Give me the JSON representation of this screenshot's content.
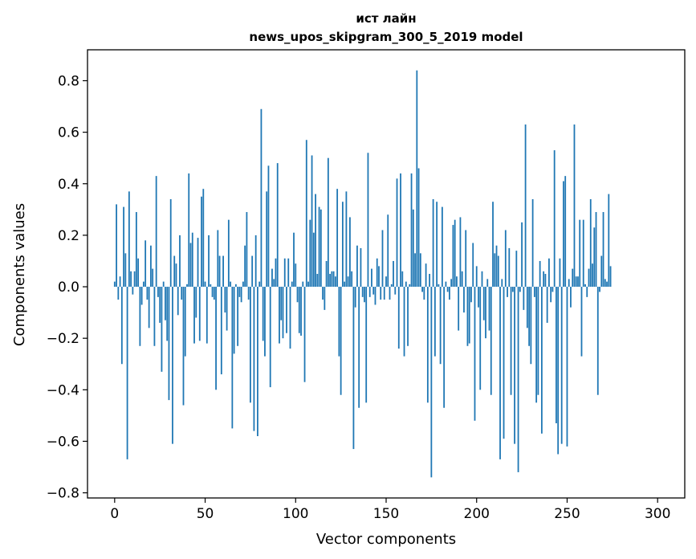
{
  "chart_data": {
    "type": "bar",
    "title_line1": "ист лайн",
    "title_line2": "news_upos_skipgram_300_5_2019 model",
    "xlabel": "Vector components",
    "ylabel": "Components values",
    "xlim": [
      -15,
      315
    ],
    "ylim": [
      -0.82,
      0.92
    ],
    "xticks": [
      0,
      50,
      100,
      150,
      200,
      250,
      300
    ],
    "xtick_labels": [
      "0",
      "50",
      "100",
      "150",
      "200",
      "250",
      "300"
    ],
    "yticks": [
      -0.8,
      -0.6,
      -0.4,
      -0.2,
      0.0,
      0.2,
      0.4,
      0.6,
      0.8
    ],
    "ytick_labels": [
      "−0.8",
      "−0.6",
      "−0.4",
      "−0.2",
      "0.0",
      "0.2",
      "0.4",
      "0.6",
      "0.8"
    ],
    "bar_color": "#1f77b4",
    "values": [
      0.02,
      0.32,
      -0.05,
      0.04,
      -0.3,
      0.31,
      0.13,
      -0.67,
      0.37,
      0.06,
      -0.03,
      0.06,
      0.29,
      0.11,
      -0.23,
      -0.07,
      0.02,
      0.18,
      -0.05,
      -0.16,
      0.16,
      0.07,
      -0.23,
      0.43,
      -0.04,
      -0.14,
      -0.33,
      0.02,
      -0.13,
      -0.21,
      -0.44,
      0.34,
      -0.61,
      0.12,
      0.09,
      -0.11,
      0.2,
      -0.05,
      -0.46,
      -0.27,
      0.01,
      0.44,
      0.17,
      0.21,
      -0.22,
      -0.12,
      0.19,
      -0.21,
      0.35,
      0.38,
      0.02,
      -0.22,
      0.2,
      0.01,
      -0.04,
      -0.05,
      -0.4,
      0.22,
      0.12,
      -0.34,
      0.12,
      -0.1,
      -0.17,
      0.26,
      0.02,
      -0.55,
      -0.26,
      0.01,
      -0.23,
      -0.04,
      -0.06,
      0.02,
      0.16,
      0.29,
      -0.05,
      -0.45,
      0.12,
      -0.56,
      0.2,
      -0.58,
      0.02,
      0.69,
      -0.21,
      -0.27,
      0.37,
      0.47,
      -0.39,
      0.07,
      0.03,
      0.11,
      0.48,
      -0.22,
      -0.13,
      -0.2,
      0.11,
      -0.18,
      0.11,
      -0.24,
      0.02,
      0.21,
      0.09,
      -0.06,
      -0.18,
      -0.19,
      0.02,
      -0.37,
      0.57,
      0.02,
      0.26,
      0.51,
      0.21,
      0.36,
      0.05,
      0.31,
      0.3,
      -0.05,
      -0.09,
      0.1,
      0.5,
      0.05,
      0.06,
      0.06,
      0.04,
      0.38,
      -0.27,
      -0.42,
      0.33,
      0.02,
      0.37,
      0.04,
      0.27,
      0.06,
      -0.63,
      -0.08,
      0.16,
      -0.47,
      0.15,
      -0.04,
      -0.06,
      -0.45,
      0.52,
      -0.04,
      0.07,
      -0.03,
      -0.07,
      0.11,
      0.08,
      -0.05,
      0.22,
      -0.05,
      0.04,
      0.28,
      -0.05,
      0.01,
      0.1,
      -0.03,
      0.42,
      -0.24,
      0.44,
      0.06,
      -0.27,
      0.02,
      -0.23,
      0.01,
      0.44,
      0.3,
      0.13,
      0.84,
      0.46,
      0.13,
      -0.02,
      -0.05,
      0.09,
      -0.45,
      0.05,
      -0.74,
      0.34,
      -0.27,
      0.33,
      0.01,
      -0.3,
      0.31,
      -0.47,
      0.02,
      -0.02,
      -0.05,
      0.03,
      0.24,
      0.26,
      0.04,
      -0.17,
      0.27,
      0.06,
      -0.1,
      0.22,
      -0.23,
      -0.22,
      -0.06,
      0.17,
      -0.52,
      0.08,
      -0.08,
      -0.4,
      0.06,
      -0.13,
      -0.2,
      0.03,
      -0.17,
      -0.42,
      0.33,
      0.13,
      0.16,
      0.12,
      -0.67,
      0.03,
      -0.59,
      0.22,
      -0.04,
      0.15,
      -0.42,
      -0.02,
      -0.61,
      0.14,
      -0.72,
      -0.02,
      0.25,
      -0.09,
      0.63,
      -0.16,
      -0.23,
      -0.3,
      0.34,
      -0.04,
      -0.45,
      -0.42,
      0.1,
      -0.57,
      0.06,
      0.05,
      -0.14,
      0.11,
      -0.06,
      -0.02,
      0.53,
      -0.53,
      -0.65,
      0.11,
      -0.61,
      0.41,
      0.43,
      -0.62,
      0.03,
      -0.08,
      0.07,
      0.63,
      0.04,
      0.04,
      0.26,
      -0.27,
      0.26,
      0.01,
      -0.04,
      0.07,
      0.34,
      0.09,
      0.23,
      0.29,
      -0.42,
      -0.02,
      0.12,
      0.29,
      0.03,
      0.02,
      0.36,
      0.08
    ]
  }
}
